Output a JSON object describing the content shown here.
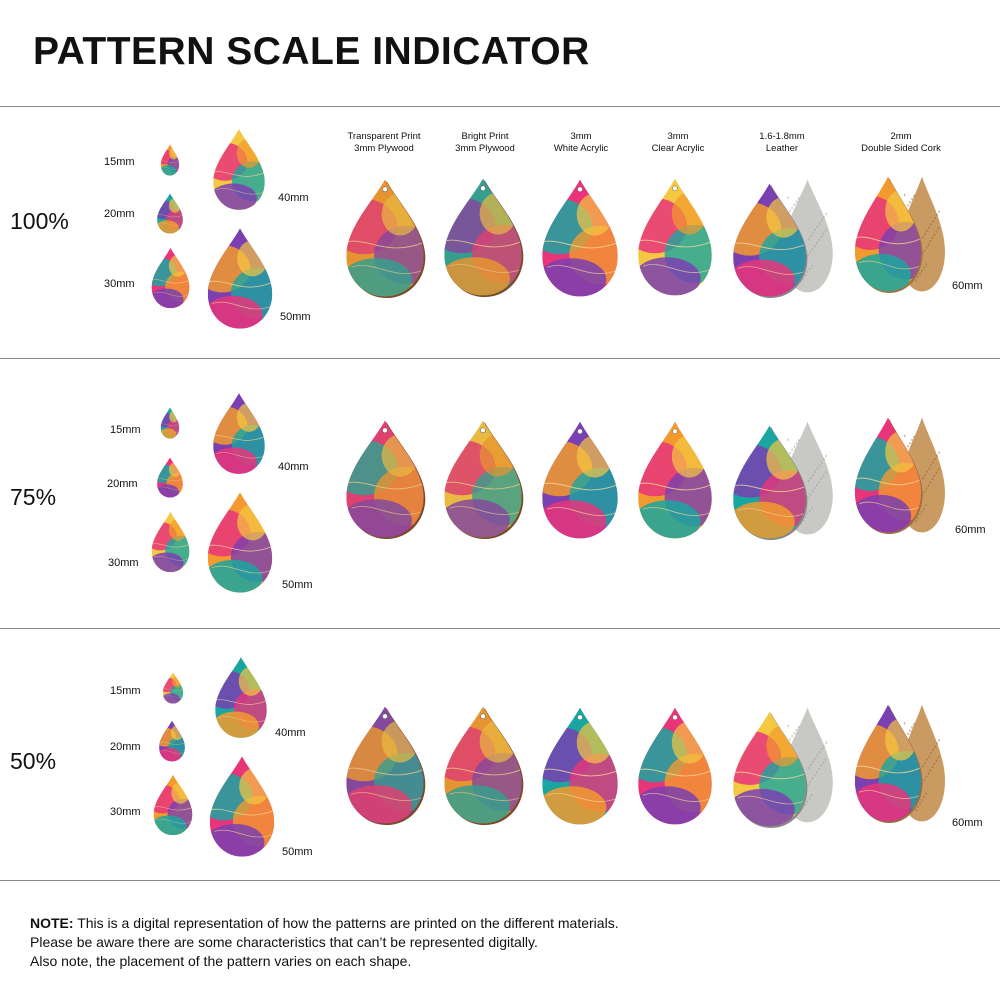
{
  "title": "PATTERN SCALE INDICATOR",
  "materials": [
    {
      "line1": "Transparent Print",
      "line2": "3mm Plywood"
    },
    {
      "line1": "Bright Print",
      "line2": "3mm Plywood"
    },
    {
      "line1": "3mm",
      "line2": "White Acrylic"
    },
    {
      "line1": "3mm",
      "line2": "Clear Acrylic"
    },
    {
      "line1": "1.6-1.8mm",
      "line2": "Leather"
    },
    {
      "line1": "2mm",
      "line2": "Double Sided Cork"
    }
  ],
  "sections": [
    {
      "scale": "100%",
      "sizes": {
        "s15": "15mm",
        "s20": "20mm",
        "s30": "30mm",
        "s40": "40mm",
        "s50": "50mm",
        "s60": "60mm"
      }
    },
    {
      "scale": "75%",
      "sizes": {
        "s15": "15mm",
        "s20": "20mm",
        "s30": "30mm",
        "s40": "40mm",
        "s50": "50mm",
        "s60": "60mm"
      }
    },
    {
      "scale": "50%",
      "sizes": {
        "s15": "15mm",
        "s20": "20mm",
        "s30": "30mm",
        "s40": "40mm",
        "s50": "50mm",
        "s60": "60mm"
      }
    }
  ],
  "note": {
    "label": "NOTE:",
    "line1": " This is a digital representation of how the patterns are printed on the different materials.",
    "line2": "Please be aware there are some characteristics that can’t be represented digitally.",
    "line3": "Also note, the placement of the pattern varies on each shape."
  },
  "colors": {
    "pink": "#e8357a",
    "purple": "#7a3fb0",
    "teal": "#1aa6a0",
    "orange": "#f29a2e",
    "yellow": "#f5c842",
    "leather": "#c8c8c4",
    "cork": "#c99a62",
    "wood_edge": "#7a4a2a"
  }
}
